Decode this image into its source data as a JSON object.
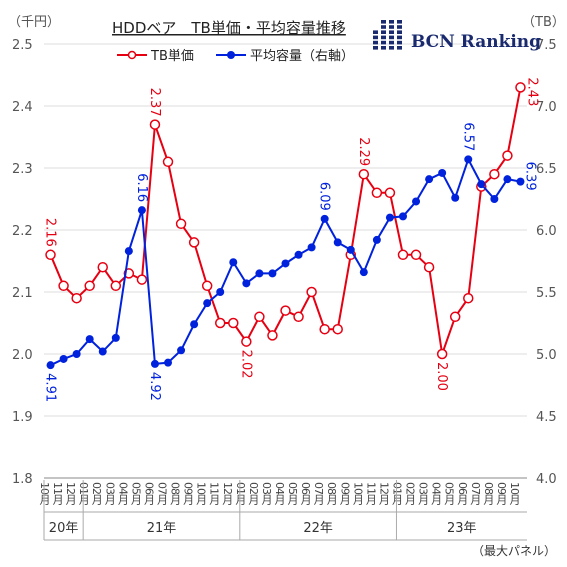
{
  "chart_data": {
    "type": "line",
    "title": "HDDベア　TB単価・平均容量推移",
    "left_unit": "（千円）",
    "right_unit": "（TB）",
    "note": "（最大パネル）",
    "brand": "BCN Ranking",
    "y_left": {
      "min": 1.8,
      "max": 2.5,
      "ticks": [
        "1.8",
        "1.9",
        "2.0",
        "2.1",
        "2.2",
        "2.3",
        "2.4",
        "2.5"
      ]
    },
    "y_right": {
      "min": 4.0,
      "max": 7.5,
      "ticks": [
        "4.0",
        "4.5",
        "5.0",
        "5.5",
        "6.0",
        "6.5",
        "7.0",
        "7.5"
      ]
    },
    "x_labels": [
      "10月",
      "11月",
      "12月",
      "01月",
      "02月",
      "03月",
      "04月",
      "05月",
      "06月",
      "07月",
      "08月",
      "09月",
      "10月",
      "11月",
      "12月",
      "01月",
      "02月",
      "03月",
      "04月",
      "05月",
      "06月",
      "07月",
      "08月",
      "09月",
      "10月",
      "11月",
      "12月",
      "01月",
      "02月",
      "03月",
      "04月",
      "05月",
      "06月",
      "07月",
      "08月",
      "09月",
      "10月"
    ],
    "year_labels": [
      {
        "label": "20年",
        "start": 0,
        "end": 2
      },
      {
        "label": "21年",
        "start": 3,
        "end": 14
      },
      {
        "label": "22年",
        "start": 15,
        "end": 26
      },
      {
        "label": "23年",
        "start": 27,
        "end": 36
      }
    ],
    "series": [
      {
        "name": "TB単価",
        "axis": "left",
        "color": "#e60012",
        "marker": "open-circle",
        "values": [
          2.16,
          2.11,
          2.09,
          2.11,
          2.14,
          2.11,
          2.13,
          2.12,
          2.37,
          2.31,
          2.21,
          2.18,
          2.11,
          2.05,
          2.05,
          2.02,
          2.06,
          2.03,
          2.07,
          2.06,
          2.1,
          2.04,
          2.04,
          2.16,
          2.29,
          2.26,
          2.26,
          2.16,
          2.16,
          2.14,
          2.0,
          2.06,
          2.09,
          2.27,
          2.29,
          2.32,
          2.43
        ]
      },
      {
        "name": "平均容量（右軸）",
        "axis": "right",
        "color": "#0022dd",
        "marker": "filled-circle",
        "values": [
          4.91,
          4.96,
          5.0,
          5.12,
          5.02,
          5.13,
          5.83,
          6.16,
          4.92,
          4.93,
          5.03,
          5.24,
          5.41,
          5.5,
          5.74,
          5.57,
          5.65,
          5.65,
          5.73,
          5.8,
          5.86,
          6.09,
          5.9,
          5.84,
          5.66,
          5.92,
          6.1,
          6.11,
          6.23,
          6.41,
          6.46,
          6.26,
          6.57,
          6.37,
          6.25,
          6.41,
          6.39
        ]
      }
    ],
    "data_labels": [
      {
        "series": 0,
        "index": 0,
        "text": "2.16"
      },
      {
        "series": 0,
        "index": 8,
        "text": "2.37"
      },
      {
        "series": 0,
        "index": 15,
        "text": "2.02"
      },
      {
        "series": 0,
        "index": 24,
        "text": "2.29"
      },
      {
        "series": 0,
        "index": 30,
        "text": "2.00"
      },
      {
        "series": 0,
        "index": 36,
        "text": "2.43"
      },
      {
        "series": 1,
        "index": 0,
        "text": "4.91"
      },
      {
        "series": 1,
        "index": 7,
        "text": "6.16"
      },
      {
        "series": 1,
        "index": 8,
        "text": "4.92"
      },
      {
        "series": 1,
        "index": 21,
        "text": "6.09"
      },
      {
        "series": 1,
        "index": 32,
        "text": "6.57"
      },
      {
        "series": 1,
        "index": 36,
        "text": "6.39"
      }
    ],
    "grid": "horizontal",
    "legend": "top-left"
  }
}
